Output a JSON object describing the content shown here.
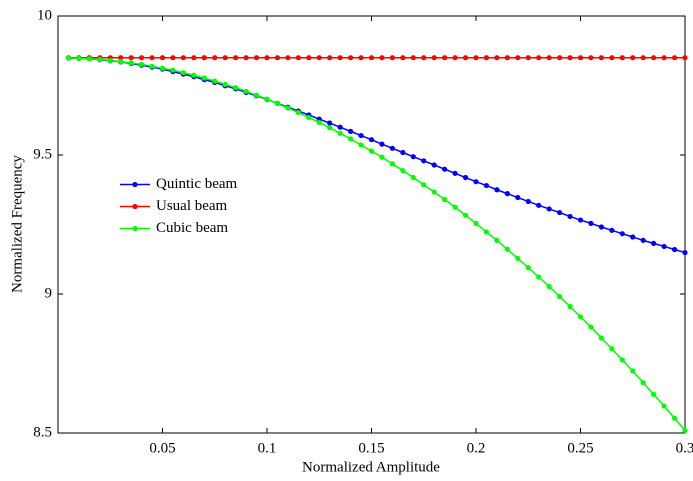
{
  "chart_data": {
    "type": "line",
    "xlabel": "Normalized Amplitude",
    "ylabel": "Normalized Frequency",
    "x": [
      0.005,
      0.01,
      0.015,
      0.02,
      0.025,
      0.03,
      0.035,
      0.04,
      0.045,
      0.05,
      0.055,
      0.06,
      0.065,
      0.07,
      0.075,
      0.08,
      0.085,
      0.09,
      0.095,
      0.1,
      0.105,
      0.11,
      0.115,
      0.12,
      0.125,
      0.13,
      0.135,
      0.14,
      0.145,
      0.15,
      0.155,
      0.16,
      0.165,
      0.17,
      0.175,
      0.18,
      0.185,
      0.19,
      0.195,
      0.2,
      0.205,
      0.21,
      0.215,
      0.22,
      0.225,
      0.23,
      0.235,
      0.24,
      0.245,
      0.25,
      0.255,
      0.26,
      0.265,
      0.27,
      0.275,
      0.28,
      0.285,
      0.29,
      0.295,
      0.3
    ],
    "series": [
      {
        "name": "Quintic beam",
        "color": "#0000ff",
        "values": [
          9.849,
          9.848,
          9.846,
          9.843,
          9.839,
          9.835,
          9.829,
          9.823,
          9.816,
          9.809,
          9.8,
          9.791,
          9.782,
          9.771,
          9.761,
          9.749,
          9.738,
          9.725,
          9.713,
          9.7,
          9.686,
          9.672,
          9.658,
          9.644,
          9.629,
          9.615,
          9.6,
          9.585,
          9.57,
          9.555,
          9.539,
          9.524,
          9.509,
          9.494,
          9.479,
          9.464,
          9.449,
          9.434,
          9.419,
          9.404,
          9.39,
          9.375,
          9.361,
          9.347,
          9.333,
          9.319,
          9.306,
          9.293,
          9.279,
          9.266,
          9.254,
          9.241,
          9.229,
          9.217,
          9.205,
          9.193,
          9.182,
          9.171,
          9.16,
          9.149
        ]
      },
      {
        "name": "Usual beam",
        "color": "#ff0000",
        "values": [
          9.85,
          9.85,
          9.85,
          9.85,
          9.85,
          9.85,
          9.85,
          9.85,
          9.85,
          9.85,
          9.85,
          9.85,
          9.85,
          9.85,
          9.85,
          9.85,
          9.85,
          9.85,
          9.85,
          9.85,
          9.85,
          9.85,
          9.85,
          9.85,
          9.85,
          9.85,
          9.85,
          9.85,
          9.85,
          9.85,
          9.85,
          9.85,
          9.85,
          9.85,
          9.85,
          9.85,
          9.85,
          9.85,
          9.85,
          9.85,
          9.85,
          9.85,
          9.85,
          9.85,
          9.85,
          9.85,
          9.85,
          9.85,
          9.85,
          9.85,
          9.85,
          9.85,
          9.85,
          9.85,
          9.85,
          9.85,
          9.85,
          9.85,
          9.85,
          9.85
        ]
      },
      {
        "name": "Cubic beam",
        "color": "#00ff00",
        "values": [
          9.849,
          9.848,
          9.846,
          9.844,
          9.84,
          9.836,
          9.831,
          9.826,
          9.819,
          9.812,
          9.805,
          9.796,
          9.787,
          9.777,
          9.766,
          9.754,
          9.742,
          9.729,
          9.715,
          9.701,
          9.685,
          9.669,
          9.653,
          9.635,
          9.617,
          9.598,
          9.578,
          9.558,
          9.536,
          9.514,
          9.492,
          9.468,
          9.444,
          9.419,
          9.393,
          9.367,
          9.34,
          9.312,
          9.283,
          9.254,
          9.223,
          9.193,
          9.161,
          9.128,
          9.095,
          9.061,
          9.027,
          8.991,
          8.955,
          8.918,
          8.881,
          8.842,
          8.803,
          8.763,
          8.723,
          8.681,
          8.639,
          8.597,
          8.553,
          8.509
        ]
      }
    ],
    "xlim": [
      0,
      0.3
    ],
    "xticks": [
      0.05,
      0.1,
      0.15,
      0.2,
      0.25,
      0.3
    ],
    "ylim": [
      8.5,
      10
    ],
    "yticks": [
      8.5,
      9,
      9.5,
      10
    ],
    "legend": "center-left"
  }
}
